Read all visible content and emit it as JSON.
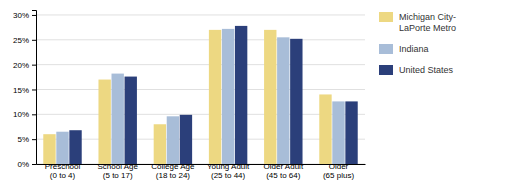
{
  "chart_data": {
    "type": "bar",
    "categories": [
      "Preschool\n(0 to 4)",
      "School Age\n(5 to 17)",
      "College Age\n(18 to 24)",
      "Young Adult\n(25 to 44)",
      "Older Adult\n(45 to 64)",
      "Older\n(65 plus)"
    ],
    "series": [
      {
        "name": "Michigan City-\nLaPorte Metro",
        "color": "#EDD882",
        "values": [
          0.06,
          0.17,
          0.08,
          0.27,
          0.27,
          0.14
        ]
      },
      {
        "name": "Indiana",
        "color": "#A8BDD8",
        "values": [
          0.065,
          0.182,
          0.096,
          0.272,
          0.255,
          0.126
        ]
      },
      {
        "name": "United States",
        "color": "#2B3F7A",
        "values": [
          0.068,
          0.176,
          0.099,
          0.278,
          0.252,
          0.126
        ]
      }
    ],
    "ylim": [
      0,
      0.31
    ],
    "yticks": [
      {
        "value": 0.0,
        "label": "0%"
      },
      {
        "value": 0.05,
        "label": "5%"
      },
      {
        "value": 0.1,
        "label": "10%"
      },
      {
        "value": 0.15,
        "label": "15%"
      },
      {
        "value": 0.2,
        "label": "20%"
      },
      {
        "value": 0.25,
        "label": "25%"
      },
      {
        "value": 0.3,
        "label": "30%"
      }
    ],
    "grid": true,
    "legend": "right"
  }
}
